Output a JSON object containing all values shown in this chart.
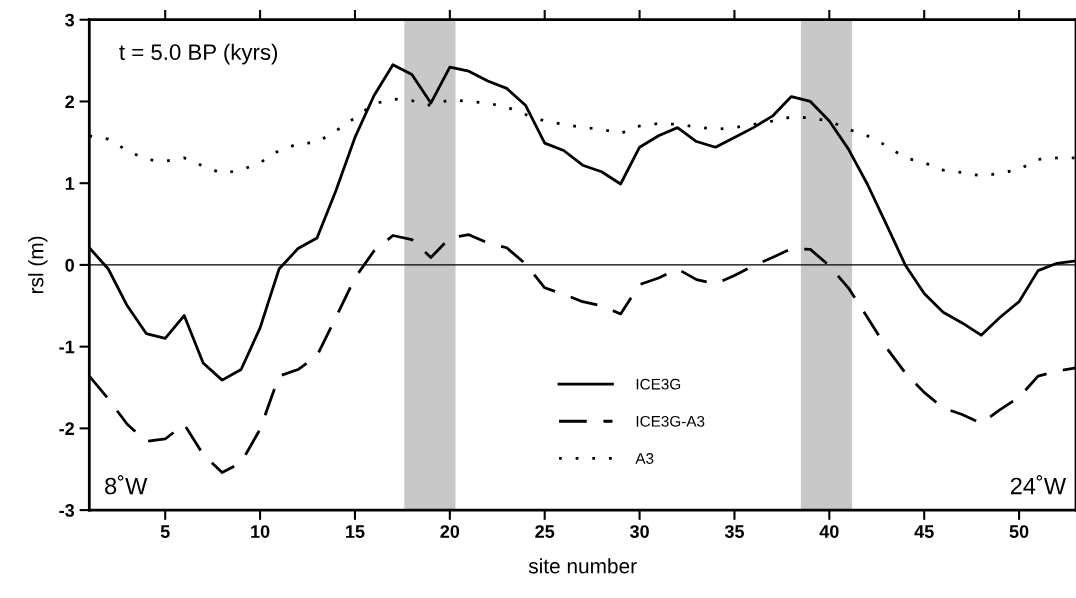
{
  "chart_data": {
    "type": "line",
    "xlabel": "site number",
    "ylabel": "rsl (m)",
    "x": [
      1,
      2,
      3,
      4,
      5,
      6,
      7,
      8,
      9,
      10,
      11,
      12,
      13,
      14,
      15,
      16,
      17,
      18,
      19,
      20,
      21,
      22,
      23,
      24,
      25,
      26,
      27,
      28,
      29,
      30,
      31,
      32,
      33,
      34,
      35,
      36,
      37,
      38,
      39,
      40,
      41,
      42,
      43,
      44,
      45,
      46,
      47,
      48,
      49,
      50,
      51,
      52,
      53
    ],
    "series": [
      {
        "name": "ICE3G",
        "color": "#000000",
        "line_style": "solid",
        "values": [
          0.21,
          -0.05,
          -0.5,
          -0.84,
          -0.9,
          -0.62,
          -1.2,
          -1.41,
          -1.28,
          -0.77,
          -0.05,
          0.2,
          0.33,
          0.91,
          1.56,
          2.07,
          2.45,
          2.33,
          1.98,
          2.42,
          2.37,
          2.25,
          2.16,
          1.95,
          1.49,
          1.4,
          1.22,
          1.14,
          0.99,
          1.44,
          1.58,
          1.68,
          1.51,
          1.44,
          1.56,
          1.68,
          1.82,
          2.06,
          2.0,
          1.76,
          1.42,
          0.99,
          0.5,
          0.0,
          -0.35,
          -0.58,
          -0.71,
          -0.86,
          -0.64,
          -0.45,
          -0.07,
          0.02,
          0.05
        ]
      },
      {
        "name": "ICE3G-A3",
        "color": "#000000",
        "line_style": "dashed",
        "values": [
          -1.36,
          -1.64,
          -1.95,
          -2.16,
          -2.13,
          -1.95,
          -2.32,
          -2.54,
          -2.42,
          -2.01,
          -1.36,
          -1.28,
          -1.11,
          -0.64,
          -0.16,
          0.17,
          0.36,
          0.31,
          0.09,
          0.33,
          0.37,
          0.27,
          0.21,
          0.01,
          -0.28,
          -0.36,
          -0.45,
          -0.5,
          -0.6,
          -0.24,
          -0.16,
          -0.05,
          -0.18,
          -0.23,
          -0.13,
          -0.01,
          0.09,
          0.2,
          0.19,
          -0.01,
          -0.28,
          -0.64,
          -1.01,
          -1.32,
          -1.56,
          -1.75,
          -1.83,
          -1.94,
          -1.77,
          -1.62,
          -1.36,
          -1.3,
          -1.26
        ]
      },
      {
        "name": "A3",
        "color": "#000000",
        "line_style": "dotted",
        "values": [
          1.58,
          1.54,
          1.4,
          1.29,
          1.27,
          1.31,
          1.21,
          1.12,
          1.16,
          1.25,
          1.4,
          1.48,
          1.5,
          1.64,
          1.8,
          1.97,
          2.03,
          2.01,
          1.95,
          2.02,
          2.0,
          1.98,
          1.93,
          1.84,
          1.76,
          1.72,
          1.68,
          1.66,
          1.61,
          1.7,
          1.73,
          1.72,
          1.69,
          1.66,
          1.68,
          1.72,
          1.76,
          1.81,
          1.8,
          1.76,
          1.66,
          1.58,
          1.46,
          1.31,
          1.25,
          1.16,
          1.13,
          1.09,
          1.12,
          1.17,
          1.29,
          1.31,
          1.31
        ]
      }
    ],
    "xlim": [
      1,
      53
    ],
    "xticks": [
      5,
      10,
      15,
      20,
      25,
      30,
      35,
      40,
      45,
      50
    ],
    "ylim": [
      -3,
      3
    ],
    "yticks": [
      -3,
      -2,
      -1,
      0,
      1,
      2,
      3
    ],
    "ref_lines": [
      {
        "axis": "y",
        "value": 0,
        "color": "#000000"
      }
    ],
    "bands": [
      {
        "axis": "x",
        "from": 17.6,
        "to": 20.3,
        "color": "#c8c8c8"
      },
      {
        "axis": "x",
        "from": 38.5,
        "to": 41.2,
        "color": "#c8c8c8"
      }
    ],
    "annotations": [
      "t = 5.0 BP (kyrs)",
      "8˚W",
      "24˚W"
    ],
    "grid": false,
    "legend": "bottom",
    "marker": "none"
  }
}
